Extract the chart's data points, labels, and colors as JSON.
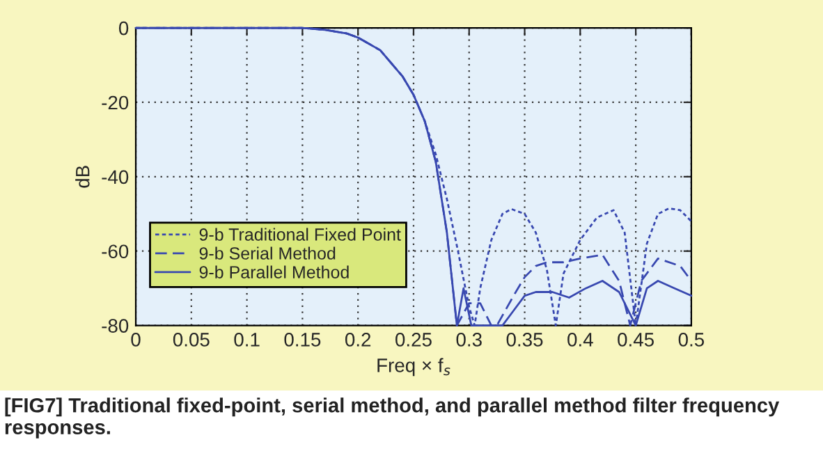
{
  "chart_data": {
    "type": "line",
    "xlabel": "Freq × f$_{s}$",
    "ylabel": "dB",
    "annotations": [
      "[FIG7] Traditional fixed-point, serial method, and parallel method filter frequency responses."
    ],
    "xlim": [
      0,
      0.5
    ],
    "ylim": [
      -80,
      0
    ],
    "xticks": [
      0,
      0.05,
      0.1,
      0.15,
      0.2,
      0.25,
      0.3,
      0.35,
      0.4,
      0.45,
      0.5
    ],
    "yticks": [
      -80,
      -60,
      -40,
      -20,
      0
    ],
    "grid": true,
    "legend": "bottom left",
    "marker": "none",
    "series": [
      {
        "name": "9-b Traditional Fixed Point",
        "color": "#3848b0",
        "line_style": "dotted",
        "x": [
          0,
          0.15,
          0.17,
          0.19,
          0.2,
          0.22,
          0.24,
          0.25,
          0.26,
          0.27,
          0.28,
          0.29,
          0.3,
          0.305,
          0.31,
          0.32,
          0.33,
          0.338,
          0.35,
          0.36,
          0.37,
          0.378,
          0.385,
          0.4,
          0.415,
          0.43,
          0.44,
          0.45,
          0.46,
          0.47,
          0.48,
          0.49,
          0.5
        ],
        "values": [
          0,
          0,
          -0.5,
          -1.5,
          -2.6,
          -6,
          -13,
          -18,
          -25,
          -34,
          -46,
          -60,
          -75,
          -80,
          -70,
          -57,
          -50,
          -48.7,
          -50,
          -55,
          -65,
          -80,
          -66,
          -57,
          -51,
          -49,
          -55,
          -80,
          -58,
          -50,
          -48.5,
          -49,
          -52
        ]
      },
      {
        "name": "9-b Serial Method",
        "color": "#3848b0",
        "line_style": "dashed",
        "x": [
          0,
          0.15,
          0.17,
          0.19,
          0.2,
          0.22,
          0.24,
          0.25,
          0.26,
          0.27,
          0.28,
          0.289,
          0.3,
          0.31,
          0.32,
          0.325,
          0.34,
          0.35,
          0.36,
          0.37,
          0.385,
          0.4,
          0.42,
          0.435,
          0.445,
          0.455,
          0.47,
          0.49,
          0.5
        ],
        "values": [
          0,
          0,
          -0.5,
          -1.5,
          -2.6,
          -6,
          -13,
          -18,
          -25,
          -36,
          -55,
          -80,
          -74,
          -74,
          -80,
          -80,
          -72,
          -67,
          -64,
          -63,
          -63,
          -62,
          -61,
          -68,
          -80,
          -68,
          -62,
          -64,
          -68
        ]
      },
      {
        "name": "9-b Parallel Method",
        "color": "#3848b0",
        "line_style": "solid",
        "x": [
          0,
          0.15,
          0.17,
          0.19,
          0.2,
          0.22,
          0.24,
          0.25,
          0.26,
          0.27,
          0.28,
          0.289,
          0.295,
          0.302,
          0.31,
          0.33,
          0.34,
          0.35,
          0.36,
          0.375,
          0.39,
          0.405,
          0.42,
          0.435,
          0.45,
          0.46,
          0.47,
          0.485,
          0.5
        ],
        "values": [
          0,
          0,
          -0.5,
          -1.5,
          -2.6,
          -6,
          -13,
          -18,
          -25,
          -36,
          -55,
          -80,
          -70,
          -80,
          -80,
          -80,
          -76,
          -72,
          -71,
          -71,
          -72.5,
          -70,
          -68,
          -71,
          -80,
          -70,
          -68,
          -70,
          -72
        ]
      }
    ]
  }
}
